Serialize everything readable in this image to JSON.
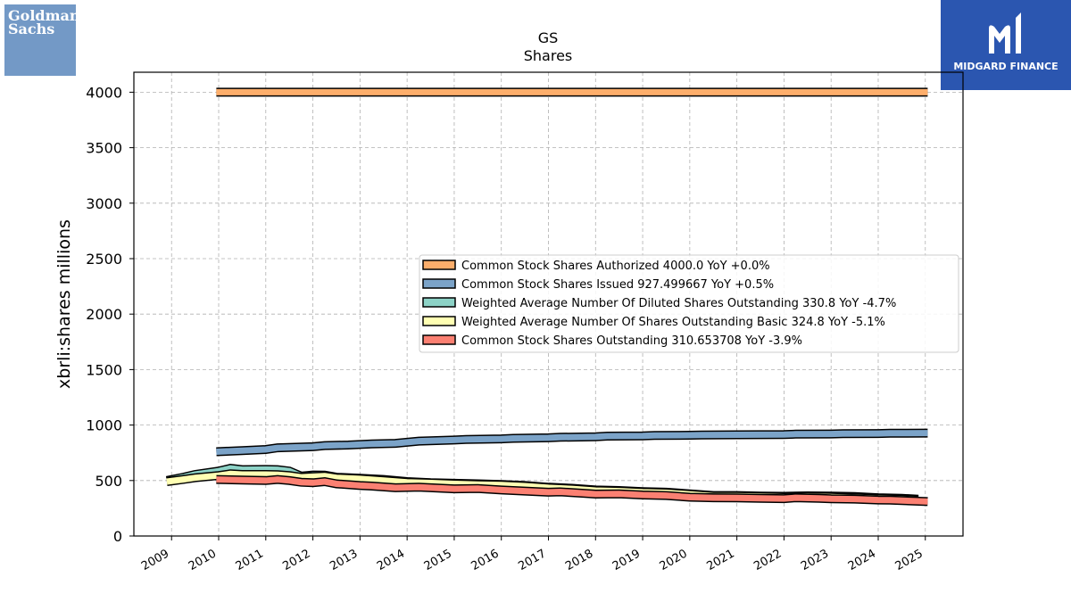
{
  "logos": {
    "left": {
      "line1": "Goldman",
      "line2": "Sachs",
      "color": "#7399c6"
    },
    "right": {
      "text": "MIDGARD FINANCE",
      "color": "#2b56b0"
    }
  },
  "chart_data": {
    "type": "line",
    "title": "GS",
    "subtitle": "Shares",
    "xlabel": "",
    "ylabel": "xbrli:shares millions",
    "xlim": [
      2008.2,
      2025.8
    ],
    "ylim": [
      0,
      4180
    ],
    "yticks": [
      0,
      500,
      1000,
      1500,
      2000,
      2500,
      3000,
      3500,
      4000
    ],
    "xticks": [
      "2009",
      "2010",
      "2011",
      "2012",
      "2013",
      "2014",
      "2015",
      "2016",
      "2017",
      "2018",
      "2019",
      "2020",
      "2021",
      "2022",
      "2023",
      "2024",
      "2025"
    ],
    "grid": true,
    "legend_position": "center-right",
    "series": [
      {
        "name": "Common Stock Shares Authorized",
        "legend": "Common Stock Shares Authorized  4000.0 YoY +0.0%",
        "color": "#fdae6b",
        "x": [
          2009.95,
          2025.05
        ],
        "y": [
          4000,
          4000
        ]
      },
      {
        "name": "Common Stock Shares Issued",
        "legend": "Common Stock Shares Issued  927.499667 YoY +0.5%",
        "color": "#7ba3c8",
        "x": [
          2009.95,
          2010.5,
          2011.0,
          2011.25,
          2012.0,
          2012.25,
          2012.75,
          2013.25,
          2013.75,
          2014.25,
          2015.0,
          2015.25,
          2016.0,
          2016.25,
          2017.0,
          2017.25,
          2018.0,
          2018.25,
          2019.0,
          2019.25,
          2020.0,
          2020.25,
          2021.0,
          2022.0,
          2022.25,
          2023.0,
          2023.25,
          2024.0,
          2024.25,
          2025.05
        ],
        "y": [
          760,
          770,
          780,
          795,
          805,
          815,
          820,
          830,
          835,
          855,
          865,
          870,
          875,
          880,
          885,
          890,
          895,
          900,
          903,
          906,
          908,
          910,
          912,
          915,
          918,
          920,
          922,
          924,
          926,
          927.5
        ]
      },
      {
        "name": "Weighted Average Number Of Diluted Shares Outstanding",
        "legend": "Weighted Average Number Of Diluted Shares Outstanding  330.8 YoY -4.7%",
        "color": "#8dd3c7",
        "x": [
          2008.9,
          2009.25,
          2009.5,
          2010.0,
          2010.25,
          2010.5,
          2011.0,
          2011.25,
          2011.5,
          2011.75,
          2012.0,
          2012.25,
          2012.5,
          2013.0,
          2013.5,
          2014.0,
          2014.5,
          2015.0,
          2015.5,
          2016.0,
          2016.5,
          2017.0,
          2017.5,
          2018.0,
          2018.5,
          2019.0,
          2019.5,
          2020.0,
          2020.5,
          2021.0,
          2021.5,
          2022.0,
          2022.5,
          2023.0,
          2023.5,
          2024.0,
          2024.5,
          2024.85
        ],
        "y": [
          500,
          530,
          555,
          585,
          610,
          598,
          600,
          598,
          585,
          540,
          550,
          548,
          530,
          520,
          510,
          490,
          480,
          475,
          470,
          465,
          455,
          440,
          430,
          415,
          410,
          400,
          395,
          380,
          365,
          365,
          360,
          358,
          362,
          360,
          355,
          345,
          340,
          330.8
        ]
      },
      {
        "name": "Weighted Average Number Of Shares Outstanding Basic",
        "legend": "Weighted Average Number Of Shares Outstanding Basic  324.8 YoY -5.1%",
        "color": "#ffffb3",
        "x": [
          2008.9,
          2009.25,
          2009.5,
          2010.0,
          2010.25,
          2010.5,
          2011.0,
          2011.25,
          2011.5,
          2011.75,
          2012.0,
          2012.25,
          2012.5,
          2013.0,
          2013.5,
          2014.0,
          2014.5,
          2015.0,
          2015.5,
          2016.0,
          2016.5,
          2017.0,
          2017.5,
          2018.0,
          2018.5,
          2019.0,
          2019.5,
          2020.0,
          2020.5,
          2021.0,
          2021.5,
          2022.0,
          2022.5,
          2023.0,
          2023.5,
          2024.0,
          2024.5,
          2024.85
        ],
        "y": [
          490,
          510,
          525,
          545,
          560,
          555,
          555,
          553,
          545,
          530,
          535,
          540,
          525,
          515,
          500,
          485,
          478,
          470,
          465,
          460,
          450,
          435,
          425,
          410,
          405,
          395,
          390,
          375,
          360,
          360,
          355,
          350,
          355,
          352,
          345,
          338,
          332,
          324.8
        ]
      },
      {
        "name": "Common Stock Shares Outstanding",
        "legend": "Common Stock Shares Outstanding  310.653708 YoY -3.9%",
        "color": "#fb8072",
        "x": [
          2009.95,
          2010.5,
          2011.0,
          2011.25,
          2011.5,
          2011.75,
          2012.0,
          2012.25,
          2012.5,
          2013.0,
          2013.25,
          2013.75,
          2014.25,
          2014.75,
          2015.0,
          2015.5,
          2016.0,
          2016.25,
          2016.75,
          2017.0,
          2017.25,
          2017.75,
          2018.0,
          2018.5,
          2019.0,
          2019.5,
          2020.0,
          2020.5,
          2021.0,
          2021.5,
          2022.0,
          2022.25,
          2022.75,
          2023.0,
          2023.5,
          2024.0,
          2024.25,
          2025.05
        ],
        "y": [
          510,
          505,
          500,
          510,
          500,
          485,
          480,
          490,
          470,
          455,
          450,
          435,
          440,
          430,
          425,
          428,
          415,
          410,
          400,
          395,
          398,
          385,
          378,
          380,
          370,
          365,
          350,
          345,
          343,
          340,
          337,
          345,
          340,
          335,
          333,
          325,
          323,
          310.65
        ]
      }
    ]
  }
}
